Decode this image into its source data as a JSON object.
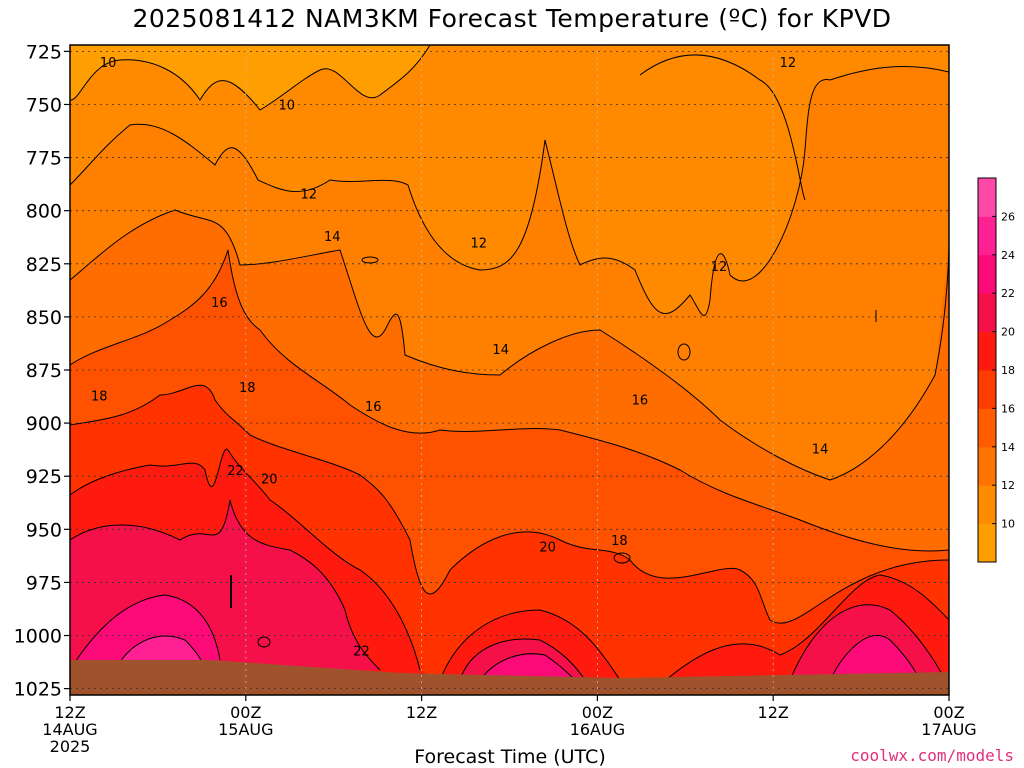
{
  "chart_data": {
    "type": "heatmap",
    "title": "2025081412 NAM3KM Forecast Temperature (ºC) for KPVD",
    "xlabel": "Forecast Time (UTC)",
    "ylabel": "",
    "credit": "coolwx.com/models",
    "x_ticks": [
      {
        "hour": 0,
        "line1": "12Z",
        "line2": "14AUG",
        "line3": "2025"
      },
      {
        "hour": 12,
        "line1": "00Z",
        "line2": "15AUG",
        "line3": ""
      },
      {
        "hour": 24,
        "line1": "12Z",
        "line2": "",
        "line3": ""
      },
      {
        "hour": 36,
        "line1": "00Z",
        "line2": "16AUG",
        "line3": ""
      },
      {
        "hour": 48,
        "line1": "12Z",
        "line2": "",
        "line3": ""
      },
      {
        "hour": 60,
        "line1": "00Z",
        "line2": "17AUG",
        "line3": ""
      }
    ],
    "x_range_hours": [
      0,
      60
    ],
    "y_ticks": [
      "725",
      "750",
      "775",
      "800",
      "825",
      "850",
      "875",
      "900",
      "925",
      "950",
      "975",
      "1000",
      "1025"
    ],
    "y_range_hpa": [
      722,
      1028
    ],
    "colorbar": {
      "labels": [
        "10",
        "12",
        "14",
        "16",
        "18",
        "20",
        "22",
        "24",
        "26"
      ],
      "colors": [
        "#ff9e00",
        "#ff8c00",
        "#ff7400",
        "#ff5c00",
        "#ff3c00",
        "#ff1a10",
        "#f5104a",
        "#fb0a78",
        "#ff2094",
        "#ff49a8"
      ]
    },
    "contours": [
      {
        "temp": 10,
        "x_hours": [
          2.6,
          14.8
        ],
        "y_hpa": [
          730,
          750
        ]
      },
      {
        "temp": 12,
        "x_hours": [
          16.3,
          27.9,
          44.3,
          49.0
        ],
        "y_hpa": [
          792,
          815,
          826,
          730
        ]
      },
      {
        "temp": 14,
        "x_hours": [
          17.9,
          29.4,
          51.2
        ],
        "y_hpa": [
          812,
          865,
          912
        ]
      },
      {
        "temp": 16,
        "x_hours": [
          10.2,
          20.7,
          38.9
        ],
        "y_hpa": [
          843,
          892,
          889
        ]
      },
      {
        "temp": 18,
        "x_hours": [
          2.0,
          12.1,
          37.5
        ],
        "y_hpa": [
          887,
          883,
          955
        ]
      },
      {
        "temp": 20,
        "x_hours": [
          13.6,
          32.6
        ],
        "y_hpa": [
          926,
          958
        ]
      },
      {
        "temp": 22,
        "x_hours": [
          11.3,
          19.9
        ],
        "y_hpa": [
          922,
          1007
        ]
      }
    ],
    "terrain_color": "#a0522d",
    "grid": true
  }
}
